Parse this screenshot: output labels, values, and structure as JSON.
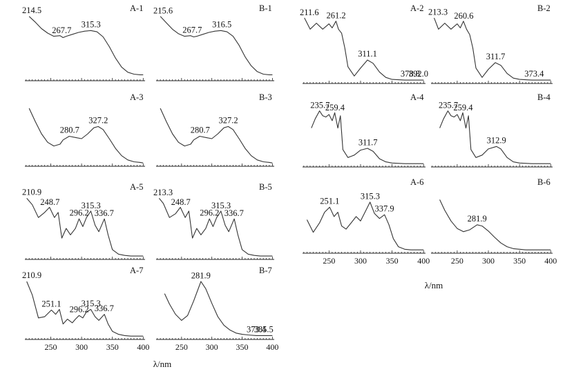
{
  "axis_label": "λ/nm",
  "chart_data": [
    {
      "id": "A-1",
      "type": "line",
      "label": "A-1",
      "x_ticks": [],
      "peaks": [
        {
          "x": 214.5,
          "text": "214.5"
        },
        {
          "x": 267.7,
          "text": "267.7"
        },
        {
          "x": 315.3,
          "text": "315.3"
        }
      ],
      "x": [
        215,
        225,
        235,
        245,
        255,
        265,
        270,
        275,
        285,
        295,
        305,
        315,
        325,
        335,
        345,
        355,
        365,
        375,
        385,
        395,
        400
      ],
      "y": [
        0.97,
        0.88,
        0.78,
        0.71,
        0.66,
        0.67,
        0.64,
        0.66,
        0.69,
        0.72,
        0.74,
        0.75,
        0.73,
        0.65,
        0.5,
        0.32,
        0.18,
        0.1,
        0.07,
        0.06,
        0.06
      ]
    },
    {
      "id": "B-1",
      "type": "line",
      "label": "B-1",
      "x_ticks": [],
      "peaks": [
        {
          "x": 215.6,
          "text": "215.6"
        },
        {
          "x": 267.7,
          "text": "267.7"
        },
        {
          "x": 316.5,
          "text": "316.5"
        }
      ],
      "x": [
        215,
        225,
        235,
        245,
        255,
        265,
        270,
        275,
        285,
        295,
        305,
        315,
        325,
        335,
        345,
        355,
        365,
        375,
        385,
        395,
        400
      ],
      "y": [
        0.97,
        0.87,
        0.77,
        0.7,
        0.66,
        0.67,
        0.65,
        0.66,
        0.69,
        0.72,
        0.74,
        0.75,
        0.73,
        0.66,
        0.52,
        0.34,
        0.2,
        0.11,
        0.07,
        0.06,
        0.06
      ]
    },
    {
      "id": "A-2",
      "type": "line",
      "label": "A-2",
      "x_ticks": [],
      "peaks": [
        {
          "x": 211.6,
          "text": "211.6"
        },
        {
          "x": 261.2,
          "text": "261.2"
        },
        {
          "x": 311.1,
          "text": "311.1"
        },
        {
          "x": 378.8,
          "text": "378.8"
        },
        {
          "x": 392.0,
          "text": "392.0"
        }
      ],
      "x": [
        211,
        220,
        230,
        240,
        250,
        255,
        261,
        265,
        270,
        275,
        280,
        290,
        300,
        311,
        320,
        330,
        340,
        350,
        370,
        392,
        400
      ],
      "y": [
        0.95,
        0.78,
        0.87,
        0.78,
        0.86,
        0.8,
        0.9,
        0.78,
        0.72,
        0.5,
        0.22,
        0.08,
        0.2,
        0.32,
        0.27,
        0.14,
        0.06,
        0.03,
        0.02,
        0.02,
        0.02
      ]
    },
    {
      "id": "B-2",
      "type": "line",
      "label": "B-2",
      "x_ticks": [],
      "peaks": [
        {
          "x": 213.3,
          "text": "213.3"
        },
        {
          "x": 260.6,
          "text": "260.6"
        },
        {
          "x": 311.7,
          "text": "311.7"
        },
        {
          "x": 373.4,
          "text": "373.4"
        }
      ],
      "x": [
        213,
        220,
        230,
        240,
        250,
        255,
        260,
        265,
        270,
        275,
        280,
        290,
        300,
        311,
        320,
        330,
        340,
        350,
        370,
        390,
        400
      ],
      "y": [
        0.95,
        0.78,
        0.87,
        0.78,
        0.86,
        0.8,
        0.9,
        0.78,
        0.7,
        0.5,
        0.2,
        0.06,
        0.18,
        0.28,
        0.24,
        0.12,
        0.05,
        0.03,
        0.02,
        0.02,
        0.02
      ]
    },
    {
      "id": "A-3",
      "type": "line",
      "label": "A-3",
      "x_ticks": [],
      "peaks": [
        {
          "x": 280.7,
          "text": "280.7"
        },
        {
          "x": 327.2,
          "text": "327.2"
        }
      ],
      "x": [
        215,
        225,
        235,
        245,
        255,
        265,
        270,
        280,
        290,
        300,
        310,
        320,
        327,
        335,
        345,
        355,
        365,
        375,
        385,
        395,
        400
      ],
      "y": [
        0.92,
        0.7,
        0.5,
        0.36,
        0.3,
        0.33,
        0.4,
        0.46,
        0.44,
        0.42,
        0.5,
        0.6,
        0.62,
        0.57,
        0.42,
        0.26,
        0.14,
        0.07,
        0.04,
        0.03,
        0.02
      ]
    },
    {
      "id": "B-3",
      "type": "line",
      "label": "B-3",
      "x_ticks": [],
      "peaks": [
        {
          "x": 280.7,
          "text": "280.7"
        },
        {
          "x": 327.2,
          "text": "327.2"
        }
      ],
      "x": [
        215,
        225,
        235,
        245,
        255,
        265,
        270,
        280,
        290,
        300,
        310,
        320,
        327,
        335,
        345,
        355,
        365,
        375,
        385,
        395,
        400
      ],
      "y": [
        0.92,
        0.7,
        0.5,
        0.36,
        0.3,
        0.33,
        0.4,
        0.46,
        0.44,
        0.42,
        0.5,
        0.6,
        0.62,
        0.57,
        0.42,
        0.26,
        0.14,
        0.07,
        0.04,
        0.03,
        0.02
      ]
    },
    {
      "id": "A-4",
      "type": "line",
      "label": "A-4",
      "x_ticks": [],
      "peaks": [
        {
          "x": 235.7,
          "text": "235.7"
        },
        {
          "x": 259.4,
          "text": "259.4"
        },
        {
          "x": 311.7,
          "text": "311.7"
        }
      ],
      "x": [
        222,
        228,
        235,
        240,
        245,
        250,
        255,
        259,
        264,
        268,
        272,
        280,
        290,
        300,
        311,
        320,
        330,
        340,
        350,
        370,
        400
      ],
      "y": [
        0.6,
        0.75,
        0.88,
        0.8,
        0.78,
        0.82,
        0.72,
        0.85,
        0.6,
        0.8,
        0.25,
        0.12,
        0.16,
        0.24,
        0.27,
        0.22,
        0.1,
        0.05,
        0.03,
        0.02,
        0.02
      ]
    },
    {
      "id": "B-4",
      "type": "line",
      "label": "B-4",
      "x_ticks": [],
      "peaks": [
        {
          "x": 235.7,
          "text": "235.7"
        },
        {
          "x": 259.4,
          "text": "259.4"
        },
        {
          "x": 312.9,
          "text": "312.9"
        }
      ],
      "x": [
        222,
        228,
        235,
        240,
        245,
        250,
        255,
        259,
        264,
        268,
        272,
        280,
        290,
        300,
        313,
        320,
        330,
        340,
        350,
        370,
        400
      ],
      "y": [
        0.6,
        0.75,
        0.88,
        0.8,
        0.78,
        0.82,
        0.72,
        0.85,
        0.6,
        0.8,
        0.25,
        0.12,
        0.16,
        0.26,
        0.3,
        0.26,
        0.12,
        0.05,
        0.03,
        0.02,
        0.02
      ]
    },
    {
      "id": "A-5",
      "type": "line",
      "label": "A-5",
      "x_ticks": [],
      "peaks": [
        {
          "x": 210.9,
          "text": "210.9"
        },
        {
          "x": 248.7,
          "text": "248.7"
        },
        {
          "x": 296.2,
          "text": "296.2"
        },
        {
          "x": 315.3,
          "text": "315.3"
        },
        {
          "x": 336.7,
          "text": "336.7"
        }
      ],
      "x": [
        211,
        220,
        230,
        240,
        248,
        256,
        262,
        268,
        275,
        282,
        290,
        296,
        302,
        308,
        315,
        322,
        328,
        337,
        343,
        350,
        360,
        370,
        380,
        400
      ],
      "y": [
        0.92,
        0.82,
        0.62,
        0.7,
        0.78,
        0.62,
        0.7,
        0.3,
        0.45,
        0.35,
        0.45,
        0.6,
        0.48,
        0.62,
        0.72,
        0.5,
        0.4,
        0.6,
        0.35,
        0.12,
        0.05,
        0.03,
        0.02,
        0.02
      ]
    },
    {
      "id": "B-5",
      "type": "line",
      "label": "B-5",
      "x_ticks": [],
      "peaks": [
        {
          "x": 213.3,
          "text": "213.3"
        },
        {
          "x": 248.7,
          "text": "248.7"
        },
        {
          "x": 296.2,
          "text": "296.2"
        },
        {
          "x": 315.3,
          "text": "315.3"
        },
        {
          "x": 336.7,
          "text": "336.7"
        }
      ],
      "x": [
        213,
        220,
        230,
        240,
        248,
        256,
        262,
        268,
        275,
        282,
        290,
        296,
        302,
        308,
        315,
        322,
        328,
        337,
        343,
        350,
        360,
        370,
        380,
        400
      ],
      "y": [
        0.92,
        0.84,
        0.62,
        0.68,
        0.78,
        0.62,
        0.72,
        0.3,
        0.45,
        0.35,
        0.45,
        0.6,
        0.48,
        0.62,
        0.72,
        0.5,
        0.4,
        0.6,
        0.35,
        0.12,
        0.05,
        0.03,
        0.02,
        0.02
      ]
    },
    {
      "id": "A-6",
      "type": "line",
      "label": "A-6",
      "x_ticks": [
        250,
        300,
        350,
        400
      ],
      "peaks": [
        {
          "x": 251.1,
          "text": "251.1"
        },
        {
          "x": 315.3,
          "text": "315.3"
        },
        {
          "x": 337.9,
          "text": "337.9"
        }
      ],
      "x": [
        215,
        225,
        235,
        243,
        251,
        258,
        264,
        270,
        277,
        285,
        293,
        300,
        307,
        315,
        322,
        330,
        338,
        345,
        352,
        360,
        370,
        380,
        400
      ],
      "y": [
        0.5,
        0.3,
        0.45,
        0.62,
        0.7,
        0.55,
        0.62,
        0.4,
        0.35,
        0.45,
        0.55,
        0.48,
        0.62,
        0.78,
        0.6,
        0.52,
        0.58,
        0.42,
        0.2,
        0.07,
        0.03,
        0.02,
        0.02
      ]
    },
    {
      "id": "B-6",
      "type": "line",
      "label": "B-6",
      "x_ticks": [
        250,
        300,
        350,
        400
      ],
      "peaks": [
        {
          "x": 281.9,
          "text": "281.9"
        }
      ],
      "x": [
        222,
        230,
        240,
        250,
        260,
        270,
        282,
        290,
        300,
        310,
        320,
        330,
        340,
        350,
        360,
        370,
        380,
        390,
        400
      ],
      "y": [
        0.82,
        0.65,
        0.48,
        0.36,
        0.31,
        0.34,
        0.42,
        0.4,
        0.32,
        0.22,
        0.13,
        0.07,
        0.04,
        0.03,
        0.02,
        0.02,
        0.02,
        0.02,
        0.02
      ]
    },
    {
      "id": "A-7",
      "type": "line",
      "label": "A-7",
      "x_ticks": [
        250,
        300,
        350,
        400
      ],
      "peaks": [
        {
          "x": 210.9,
          "text": "210.9"
        },
        {
          "x": 251.1,
          "text": "251.1"
        },
        {
          "x": 296.2,
          "text": "296.2"
        },
        {
          "x": 315.3,
          "text": "315.3"
        },
        {
          "x": 336.7,
          "text": "336.7"
        }
      ],
      "x": [
        211,
        220,
        230,
        240,
        251,
        258,
        264,
        270,
        277,
        285,
        290,
        296,
        302,
        308,
        315,
        322,
        328,
        337,
        343,
        350,
        360,
        370,
        380,
        400
      ],
      "y": [
        0.92,
        0.7,
        0.32,
        0.34,
        0.45,
        0.38,
        0.46,
        0.22,
        0.3,
        0.24,
        0.3,
        0.36,
        0.32,
        0.42,
        0.46,
        0.34,
        0.28,
        0.38,
        0.22,
        0.1,
        0.05,
        0.03,
        0.02,
        0.02
      ]
    },
    {
      "id": "B-7",
      "type": "line",
      "label": "B-7",
      "x_ticks": [
        250,
        300,
        350,
        400
      ],
      "peaks": [
        {
          "x": 281.9,
          "text": "281.9"
        },
        {
          "x": 373.4,
          "text": "373.4"
        },
        {
          "x": 385.5,
          "text": "385.5"
        }
      ],
      "x": [
        222,
        230,
        240,
        250,
        260,
        270,
        282,
        290,
        300,
        310,
        320,
        330,
        340,
        350,
        360,
        373,
        385,
        400
      ],
      "y": [
        0.72,
        0.55,
        0.38,
        0.28,
        0.36,
        0.6,
        0.92,
        0.8,
        0.56,
        0.34,
        0.2,
        0.12,
        0.07,
        0.05,
        0.04,
        0.03,
        0.03,
        0.03
      ]
    }
  ]
}
